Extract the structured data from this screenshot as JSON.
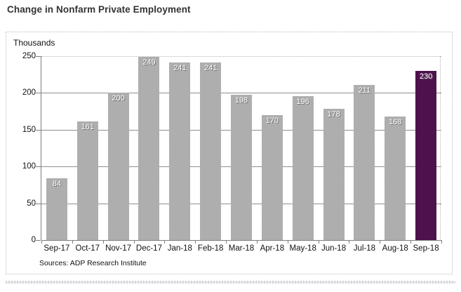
{
  "page": {
    "title": "Change in Nonfarm Private Employment"
  },
  "chart_data": {
    "type": "bar",
    "title": "Change in Nonfarm Private Employment",
    "unit_label": "Thousands",
    "categories": [
      "Sep-17",
      "Oct-17",
      "Nov-17",
      "Dec-17",
      "Jan-18",
      "Feb-18",
      "Mar-18",
      "Apr-18",
      "May-18",
      "Jun-18",
      "Jul-18",
      "Aug-18",
      "Sep-18"
    ],
    "values": [
      84,
      161,
      200,
      249,
      241,
      241,
      198,
      170,
      196,
      178,
      211,
      168,
      230
    ],
    "highlight_index": 12,
    "ylim": [
      0,
      250
    ],
    "yticks": [
      0,
      50,
      100,
      150,
      200,
      250
    ],
    "grid": true,
    "legend_position": "none",
    "bar_color": "#adadad",
    "highlight_color": "#4e124e",
    "value_label_color": "#ffffff",
    "source": "Sources: ADP Research Institute"
  }
}
